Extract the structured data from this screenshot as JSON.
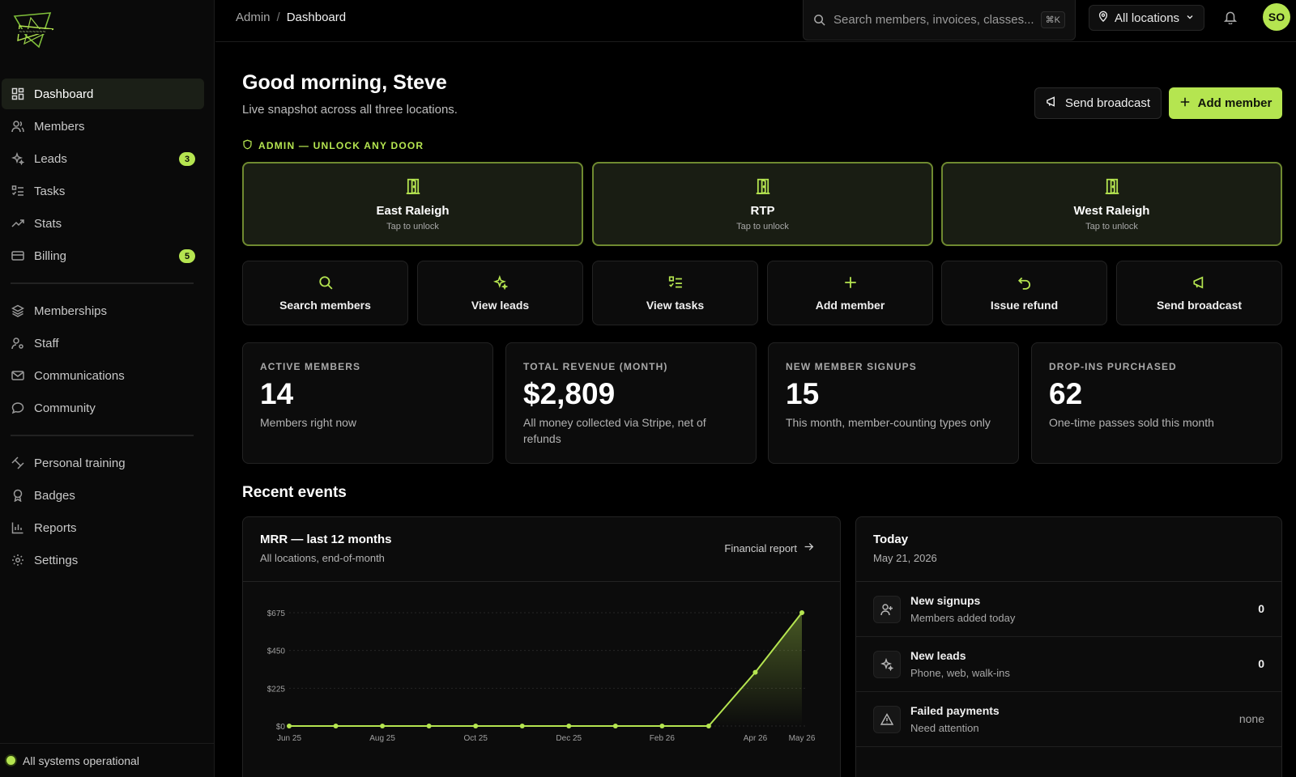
{
  "app": {
    "status": "All systems operational"
  },
  "sidebar": {
    "items": [
      {
        "label": "Dashboard",
        "icon": "dashboard-icon",
        "active": true
      },
      {
        "label": "Members",
        "icon": "members-icon"
      },
      {
        "label": "Leads",
        "icon": "sparkles-icon",
        "badge": "3"
      },
      {
        "label": "Tasks",
        "icon": "list-checks-icon"
      },
      {
        "label": "Stats",
        "icon": "trending-up-icon"
      },
      {
        "label": "Billing",
        "icon": "credit-card-icon",
        "badge": "5"
      }
    ],
    "items2": [
      {
        "label": "Memberships",
        "icon": "layers-icon"
      },
      {
        "label": "Staff",
        "icon": "user-cog-icon"
      },
      {
        "label": "Communications",
        "icon": "mail-icon"
      },
      {
        "label": "Community",
        "icon": "chat-bubble-icon"
      }
    ],
    "items3": [
      {
        "label": "Personal training",
        "icon": "dumbbell-icon"
      },
      {
        "label": "Badges",
        "icon": "award-icon"
      },
      {
        "label": "Reports",
        "icon": "bar-chart-icon"
      },
      {
        "label": "Settings",
        "icon": "gear-icon"
      }
    ]
  },
  "topbar": {
    "breadcrumb_root": "Admin",
    "breadcrumb_sep": "/",
    "breadcrumb_current": "Dashboard",
    "search_placeholder": "Search members, invoices, classes...",
    "search_shortcut": "⌘K",
    "location_selected": "All locations",
    "avatar_initials": "SO"
  },
  "header": {
    "greeting": "Good morning, Steve",
    "subtitle": "Live snapshot across all three locations.",
    "broadcast_label": "Send broadcast",
    "add_member_label": "Add member"
  },
  "doors": {
    "section_label": "ADMIN — UNLOCK ANY DOOR",
    "items": [
      {
        "name": "East Raleigh",
        "hint": "Tap to unlock"
      },
      {
        "name": "RTP",
        "hint": "Tap to unlock"
      },
      {
        "name": "West Raleigh",
        "hint": "Tap to unlock"
      }
    ]
  },
  "quick_actions": [
    {
      "label": "Search members",
      "icon": "search-icon"
    },
    {
      "label": "View leads",
      "icon": "sparkles-icon"
    },
    {
      "label": "View tasks",
      "icon": "list-checks-icon"
    },
    {
      "label": "Add member",
      "icon": "plus-icon"
    },
    {
      "label": "Issue refund",
      "icon": "undo-icon"
    },
    {
      "label": "Send broadcast",
      "icon": "megaphone-icon"
    }
  ],
  "stats": [
    {
      "label": "ACTIVE MEMBERS",
      "value": "14",
      "desc": "Members right now"
    },
    {
      "label": "TOTAL REVENUE (MONTH)",
      "value": "$2,809",
      "desc": "All money collected via Stripe, net of refunds"
    },
    {
      "label": "NEW MEMBER SIGNUPS",
      "value": "15",
      "desc": "This month, member-counting types only"
    },
    {
      "label": "DROP-INS PURCHASED",
      "value": "62",
      "desc": "One-time passes sold this month"
    }
  ],
  "recent_events": {
    "title": "Recent events",
    "chart_title": "MRR — last 12 months",
    "chart_subtitle": "All locations, end-of-month",
    "chart_link": "Financial report"
  },
  "chart_data": {
    "type": "area",
    "x": [
      "Jun 25",
      "Jul 25",
      "Aug 25",
      "Sep 25",
      "Oct 25",
      "Nov 25",
      "Dec 25",
      "Jan 26",
      "Feb 26",
      "Mar 26",
      "Apr 26",
      "May 26"
    ],
    "values": [
      0,
      0,
      0,
      0,
      0,
      0,
      0,
      0,
      0,
      0,
      320,
      675
    ],
    "x_tick_labels": [
      "Jun 25",
      "Aug 25",
      "Oct 25",
      "Dec 25",
      "Feb 26",
      "Apr 26",
      "May 26"
    ],
    "y_ticks": [
      0,
      225,
      450,
      675
    ],
    "y_tick_labels": [
      "$0",
      "$225",
      "$450",
      "$675"
    ],
    "ylim": [
      0,
      675
    ],
    "grid": true,
    "color": "#b5e550"
  },
  "today": {
    "title": "Today",
    "date": "May 21, 2026",
    "rows": [
      {
        "name": "New signups",
        "sub": "Members added today",
        "value": "0",
        "icon": "user-plus-icon"
      },
      {
        "name": "New leads",
        "sub": "Phone, web, walk-ins",
        "value": "0",
        "icon": "sparkles-icon"
      },
      {
        "name": "Failed payments",
        "sub": "Need attention",
        "value": "none",
        "icon": "warning-icon"
      }
    ]
  },
  "colors": {
    "accent": "#b5e550",
    "background": "#000000",
    "card": "#0c0c0c"
  }
}
